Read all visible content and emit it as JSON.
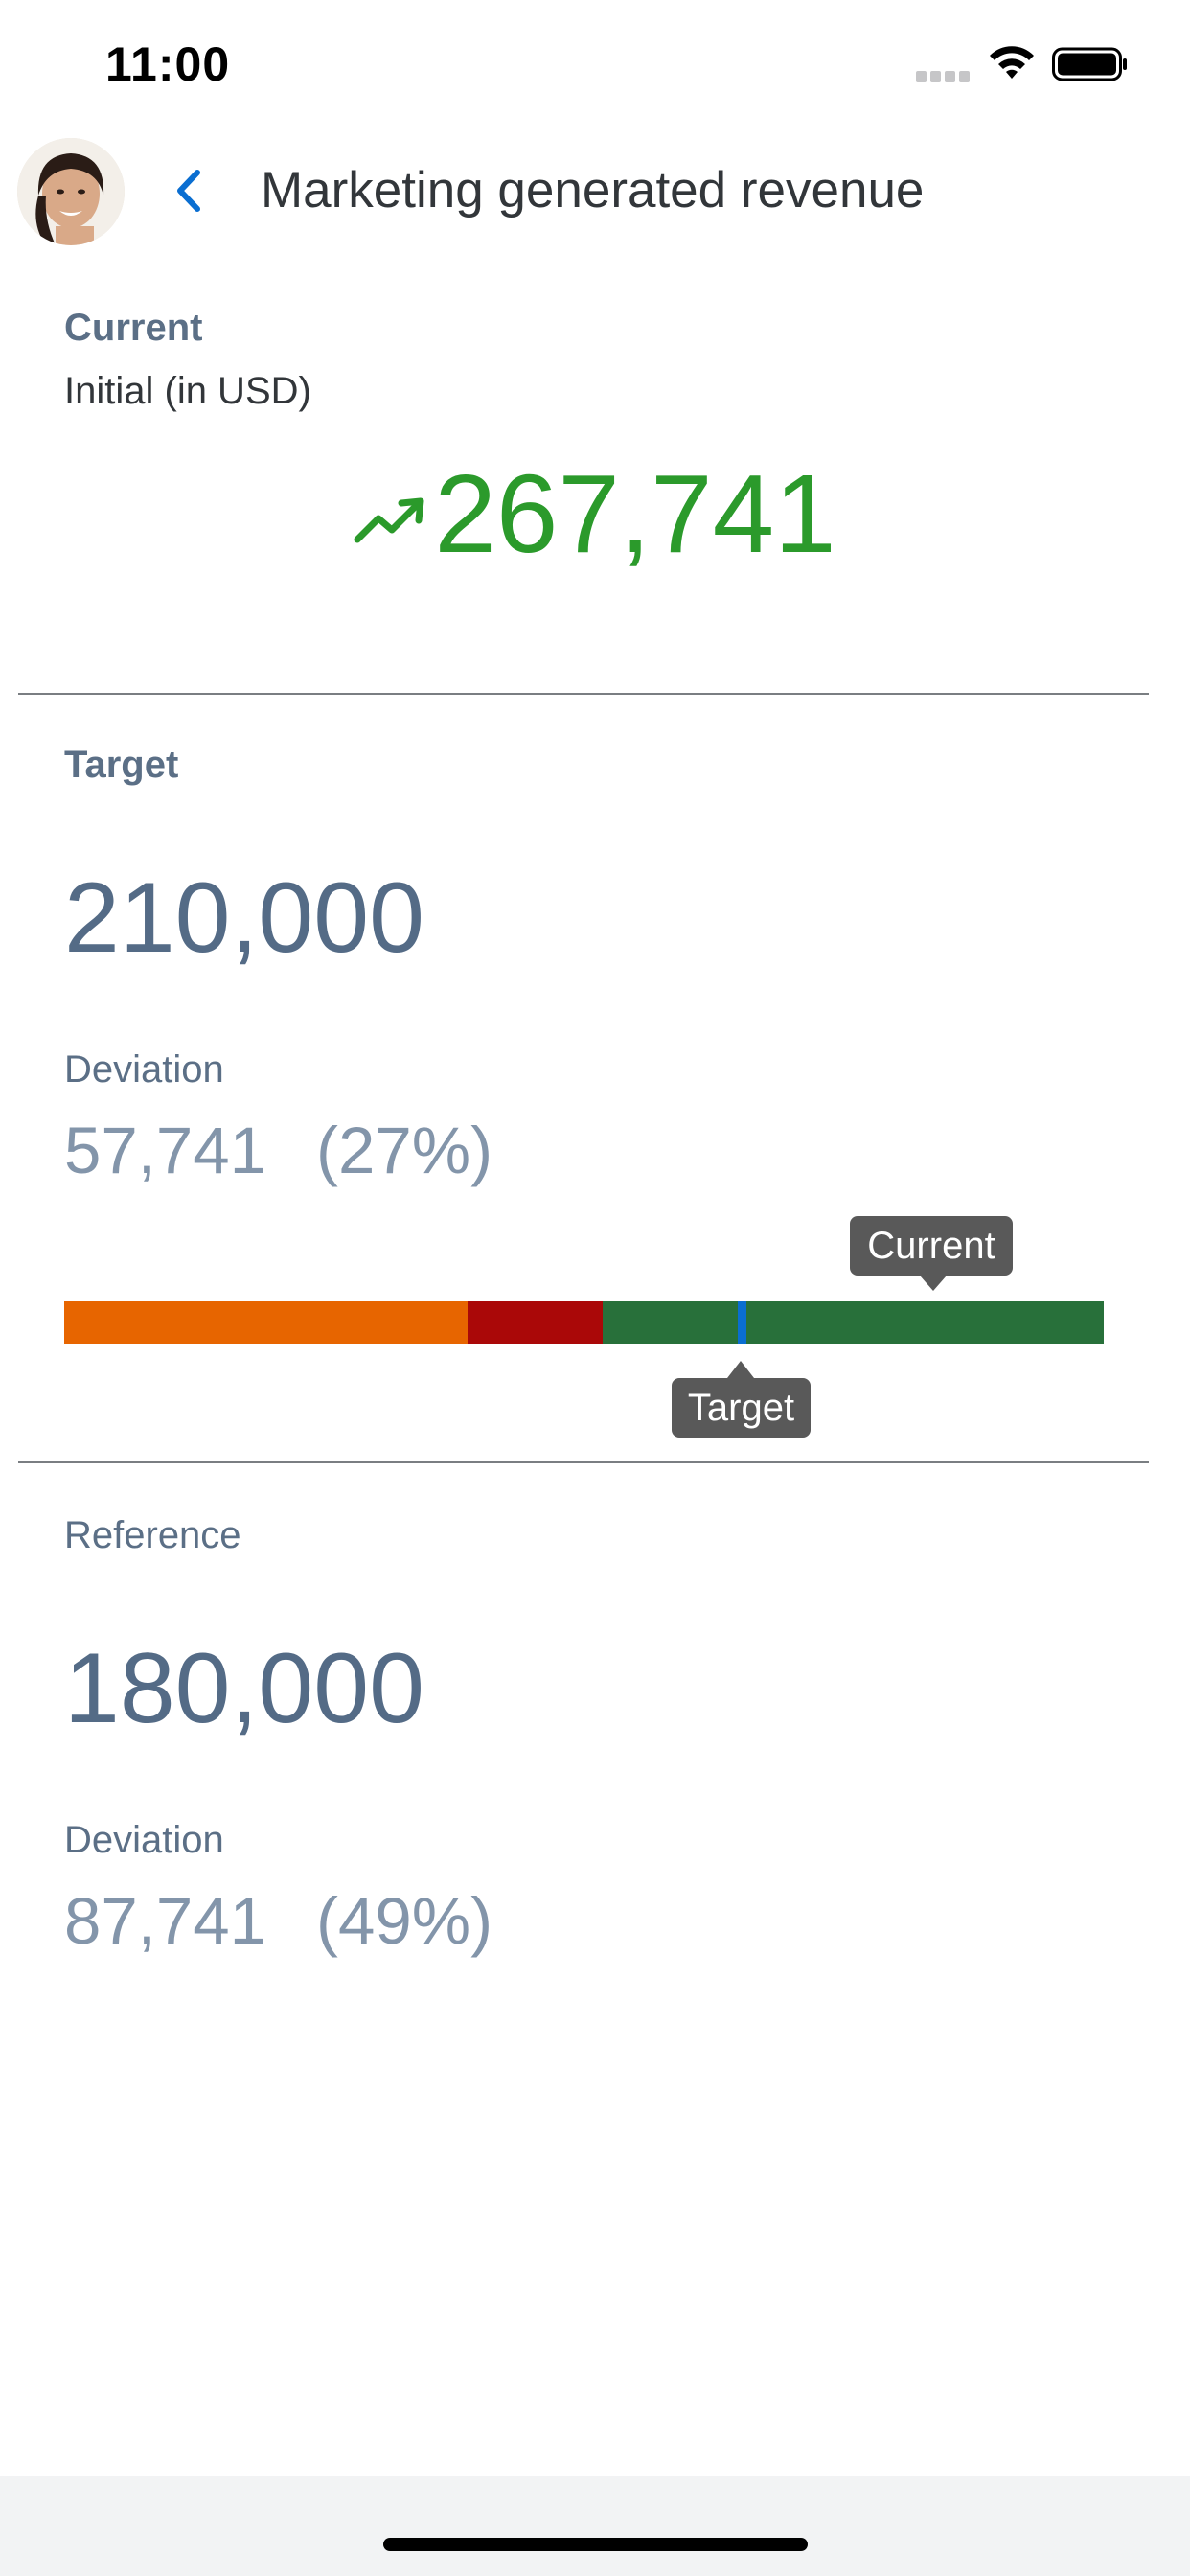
{
  "status_bar": {
    "time": "11:00",
    "icons": [
      "signal-icon",
      "wifi-icon",
      "battery-icon"
    ]
  },
  "header": {
    "avatar": "user-avatar",
    "back_icon": "chevron-left-icon",
    "title": "Marketing generated revenue"
  },
  "current": {
    "label": "Current",
    "subtitle": "Initial (in USD)",
    "trend_icon": "trending-up-icon",
    "value": "267,741"
  },
  "target": {
    "label": "Target",
    "value": "210,000",
    "deviation_label": "Deviation",
    "deviation_value": "57,741",
    "deviation_percent": "(27%)"
  },
  "bullet_chart": {
    "current_tooltip": "Current",
    "target_tooltip": "Target",
    "colors": {
      "low": "#e76500",
      "mid": "#aa0808",
      "high": "#28703a",
      "target_marker": "#0a6ed1"
    }
  },
  "reference": {
    "label": "Reference",
    "value": "180,000",
    "deviation_label": "Deviation",
    "deviation_value": "87,741",
    "deviation_percent": "(49%)"
  },
  "colors": {
    "accent": "#0a6ed1",
    "positive": "#2b9a2b",
    "title": "#32363a",
    "label": "#5b6f86"
  }
}
